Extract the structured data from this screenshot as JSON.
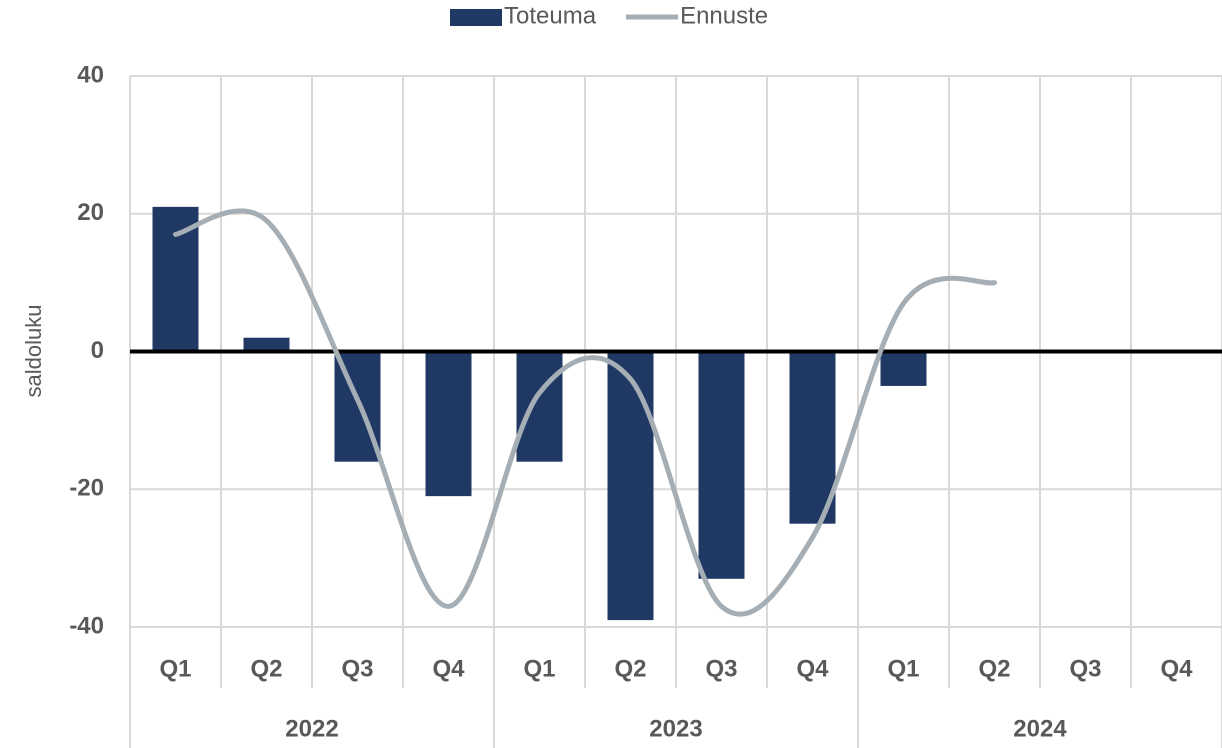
{
  "chart_data": {
    "type": "bar_line",
    "y_axis_label": "saldoluku",
    "categories": [
      "Q1",
      "Q2",
      "Q3",
      "Q4",
      "Q1",
      "Q2",
      "Q3",
      "Q4",
      "Q1",
      "Q2",
      "Q3",
      "Q4"
    ],
    "groups": [
      "2022",
      "2023",
      "2024"
    ],
    "series": [
      {
        "name": "Toteuma",
        "type": "bar",
        "color": "#1f3864",
        "values": [
          21,
          2,
          -16,
          -21,
          -16,
          -39,
          -33,
          -25,
          -5,
          null,
          null,
          null
        ]
      },
      {
        "name": "Ennuste",
        "type": "line",
        "color": "#a5aeb4",
        "values": [
          17,
          19,
          -7,
          -37,
          -6,
          -4,
          -37,
          -27,
          7,
          10,
          null,
          null
        ]
      }
    ],
    "ylim": [
      -40,
      40
    ],
    "yticks": [
      -40,
      -20,
      0,
      20,
      40
    ],
    "grid": true,
    "legend": "top"
  }
}
